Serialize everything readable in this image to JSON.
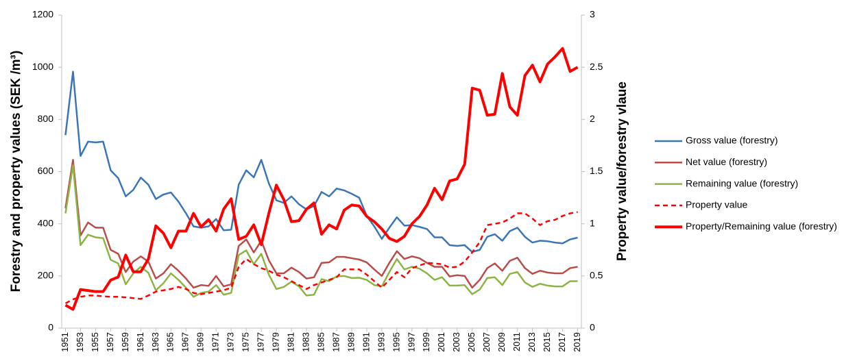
{
  "chart_data": {
    "type": "line",
    "y_label": "Forestry and property values (SEK /m³)",
    "y2_label": "Property value/forestry vlaue",
    "x": [
      1951,
      1952,
      1953,
      1954,
      1955,
      1956,
      1957,
      1958,
      1959,
      1960,
      1961,
      1962,
      1963,
      1964,
      1965,
      1966,
      1967,
      1968,
      1969,
      1970,
      1971,
      1972,
      1973,
      1974,
      1975,
      1976,
      1977,
      1978,
      1979,
      1980,
      1981,
      1982,
      1983,
      1984,
      1985,
      1986,
      1987,
      1988,
      1989,
      1990,
      1991,
      1992,
      1993,
      1994,
      1995,
      1996,
      1997,
      1998,
      1999,
      2000,
      2001,
      2002,
      2003,
      2004,
      2005,
      2006,
      2007,
      2008,
      2009,
      2010,
      2011,
      2012,
      2013,
      2014,
      2015,
      2016,
      2017,
      2018,
      2019
    ],
    "xlim": [
      1950.5,
      2019.5
    ],
    "xticks": [
      1951,
      1953,
      1955,
      1957,
      1959,
      1961,
      1963,
      1965,
      1967,
      1969,
      1971,
      1973,
      1975,
      1977,
      1979,
      1981,
      1983,
      1985,
      1987,
      1989,
      1991,
      1993,
      1995,
      1997,
      1999,
      2001,
      2003,
      2005,
      2007,
      2009,
      2011,
      2013,
      2015,
      2017,
      2019
    ],
    "ylim": [
      0,
      1200
    ],
    "yticks": [
      0,
      200,
      400,
      600,
      800,
      1000,
      1200
    ],
    "y2lim": [
      0,
      3
    ],
    "y2ticks": [
      0,
      0.5,
      1,
      1.5,
      2,
      2.5,
      3
    ],
    "legend": "right",
    "series": [
      {
        "name": "Gross value (forestry)",
        "color": "#3a75b8",
        "values": [
          740,
          983,
          660,
          715,
          712,
          715,
          605,
          575,
          505,
          530,
          577,
          550,
          495,
          512,
          520,
          485,
          440,
          390,
          385,
          390,
          418,
          375,
          377,
          550,
          605,
          578,
          645,
          555,
          490,
          480,
          505,
          475,
          455,
          468,
          522,
          505,
          535,
          528,
          515,
          500,
          430,
          390,
          342,
          385,
          425,
          393,
          395,
          388,
          380,
          348,
          348,
          318,
          315,
          318,
          292,
          300,
          350,
          360,
          335,
          372,
          385,
          350,
          328,
          335,
          333,
          328,
          325,
          340,
          347
        ]
      },
      {
        "name": "Net value (forestry)",
        "color": "#b84c48",
        "values": [
          460,
          645,
          355,
          405,
          385,
          385,
          300,
          285,
          215,
          255,
          275,
          255,
          190,
          210,
          245,
          220,
          190,
          155,
          165,
          162,
          200,
          160,
          168,
          315,
          340,
          290,
          335,
          260,
          210,
          210,
          232,
          215,
          190,
          195,
          250,
          252,
          273,
          273,
          268,
          263,
          252,
          225,
          200,
          250,
          295,
          265,
          275,
          268,
          250,
          235,
          235,
          198,
          203,
          200,
          155,
          185,
          230,
          248,
          220,
          258,
          270,
          230,
          208,
          220,
          213,
          210,
          210,
          230,
          235
        ]
      },
      {
        "name": "Remaining value (forestry)",
        "color": "#8db344",
        "values": [
          440,
          625,
          318,
          358,
          348,
          345,
          262,
          248,
          168,
          210,
          235,
          212,
          145,
          172,
          210,
          185,
          155,
          120,
          135,
          140,
          165,
          128,
          135,
          280,
          298,
          245,
          285,
          205,
          150,
          158,
          178,
          160,
          125,
          128,
          188,
          180,
          198,
          200,
          192,
          193,
          185,
          165,
          160,
          215,
          265,
          225,
          235,
          228,
          210,
          185,
          195,
          163,
          163,
          165,
          130,
          148,
          192,
          195,
          165,
          208,
          215,
          175,
          158,
          170,
          163,
          160,
          160,
          180,
          180
        ]
      },
      {
        "name": "Property value",
        "color": "#ff0000",
        "dashed": true,
        "values": [
          95,
          110,
          120,
          125,
          125,
          122,
          120,
          120,
          118,
          115,
          112,
          125,
          140,
          145,
          150,
          158,
          150,
          135,
          130,
          135,
          140,
          145,
          155,
          235,
          265,
          245,
          230,
          220,
          205,
          195,
          180,
          165,
          150,
          165,
          175,
          185,
          195,
          225,
          225,
          225,
          205,
          180,
          155,
          185,
          215,
          195,
          230,
          240,
          250,
          248,
          245,
          232,
          235,
          255,
          290,
          330,
          395,
          400,
          405,
          420,
          440,
          440,
          420,
          395,
          410,
          415,
          430,
          440,
          445
        ]
      },
      {
        "name": "Property/Remaining value (forestry)",
        "color": "#ff0000",
        "axis": "y2",
        "linewidth": 4,
        "values": [
          0.22,
          0.18,
          0.37,
          0.36,
          0.35,
          0.35,
          0.46,
          0.49,
          0.7,
          0.54,
          0.54,
          0.66,
          0.98,
          0.91,
          0.77,
          0.93,
          0.93,
          1.1,
          0.97,
          1.04,
          0.93,
          1.14,
          1.24,
          0.85,
          0.88,
          0.99,
          0.8,
          1.1,
          1.37,
          1.23,
          1.02,
          1.03,
          1.14,
          1.2,
          0.9,
          0.99,
          0.95,
          1.13,
          1.18,
          1.17,
          1.07,
          1.02,
          0.95,
          0.86,
          0.83,
          0.88,
          1.0,
          1.07,
          1.18,
          1.34,
          1.23,
          1.41,
          1.43,
          1.57,
          2.3,
          2.28,
          2.04,
          2.05,
          2.44,
          2.12,
          2.04,
          2.42,
          2.52,
          2.36,
          2.53,
          2.6,
          2.68,
          2.46,
          2.5
        ]
      }
    ]
  }
}
